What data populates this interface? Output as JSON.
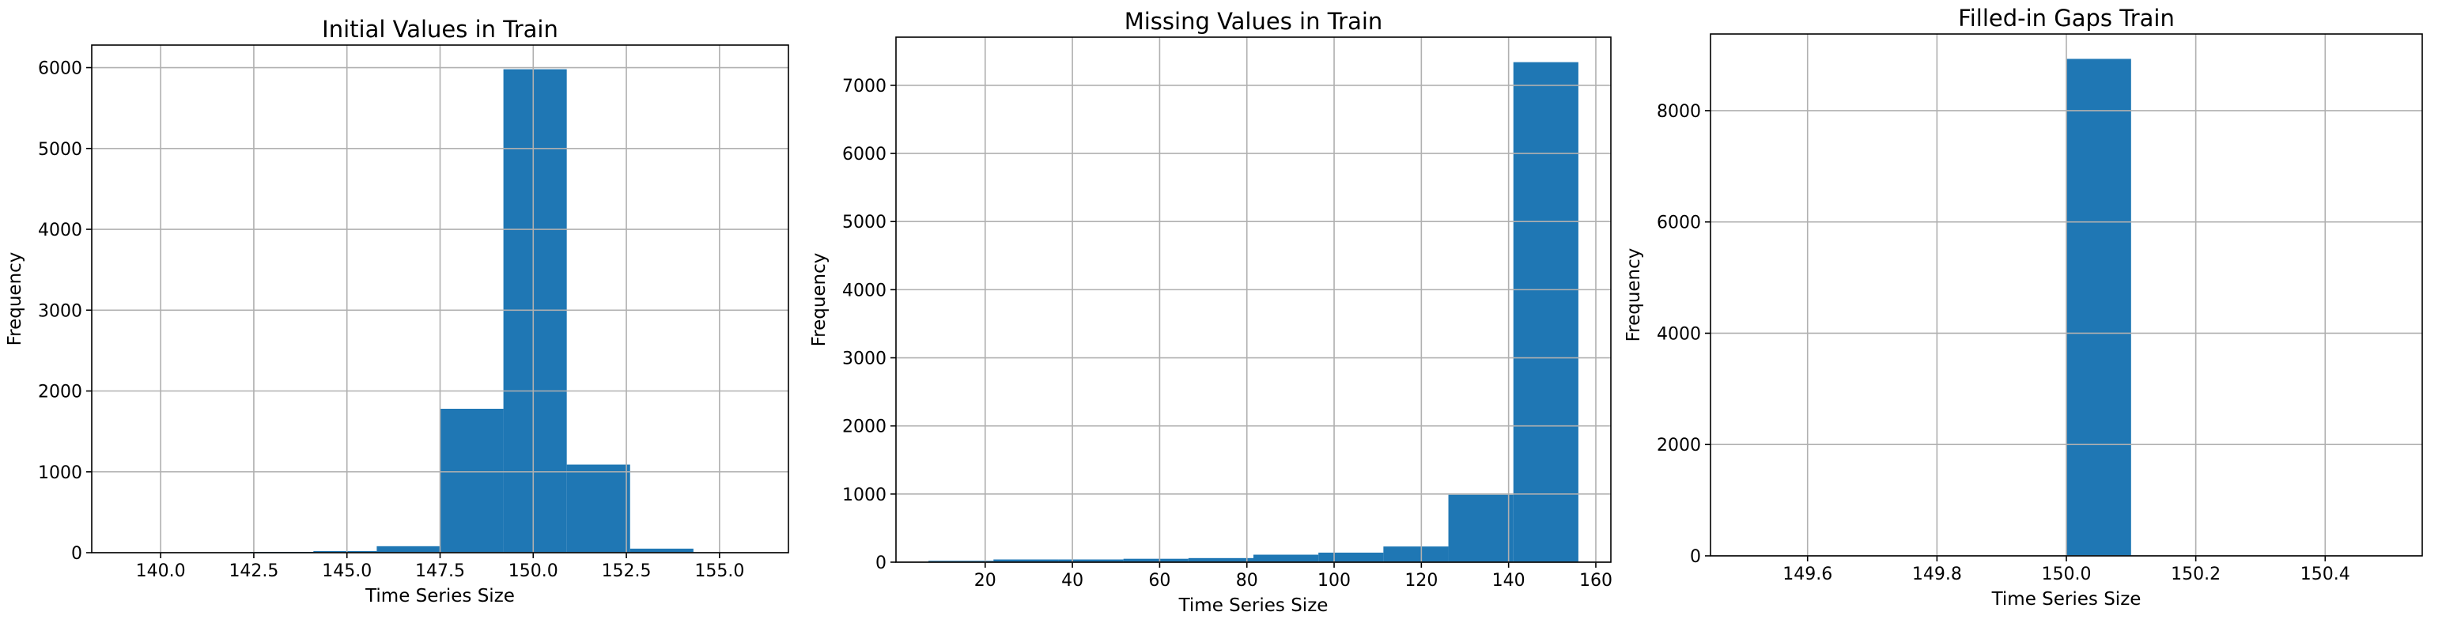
{
  "chart_data": [
    {
      "type": "histogram",
      "title": "Initial Values in Train",
      "x_label": "Time Series Size",
      "y_label": "Frequency",
      "bins": [
        139,
        140.7,
        142.4,
        144.1,
        145.8,
        147.5,
        149.2,
        150.9,
        152.6,
        154.3,
        156
      ],
      "counts": [
        3,
        0,
        10,
        20,
        80,
        1780,
        5980,
        1090,
        50,
        1
      ],
      "color": "#1f77b4",
      "grid": true,
      "xlim": [
        138.15,
        156.85
      ],
      "xticks": [
        {
          "value": 140,
          "label": "140.0"
        },
        {
          "value": 142.5,
          "label": "142.5"
        },
        {
          "value": 145,
          "label": "145.0"
        },
        {
          "value": 147.5,
          "label": "147.5"
        },
        {
          "value": 150,
          "label": "150.0"
        },
        {
          "value": 152.5,
          "label": "152.5"
        },
        {
          "value": 155,
          "label": "155.0"
        }
      ],
      "ylim": [
        0,
        6279
      ],
      "yticks": [
        0,
        1000,
        2000,
        3000,
        4000,
        5000,
        6000
      ]
    },
    {
      "type": "histogram",
      "title": "Missing Values in Train",
      "x_label": "Time Series Size",
      "y_label": "Frequency",
      "bins": [
        7,
        21.9,
        36.8,
        51.7,
        66.6,
        81.5,
        96.4,
        111.3,
        126.2,
        141.1,
        156
      ],
      "counts": [
        20,
        40,
        40,
        50,
        60,
        110,
        140,
        230,
        990,
        7340
      ],
      "color": "#1f77b4",
      "grid": true,
      "xlim": [
        -0.45,
        163.45
      ],
      "xticks": [
        20,
        40,
        60,
        80,
        100,
        120,
        140,
        160
      ],
      "ylim": [
        0,
        7707
      ],
      "yticks": [
        0,
        1000,
        2000,
        3000,
        4000,
        5000,
        6000,
        7000
      ]
    },
    {
      "type": "histogram",
      "title": "Filled-in Gaps Train",
      "x_label": "Time Series Size",
      "y_label": "Frequency",
      "bins": [
        149.5,
        149.6,
        149.7,
        149.8,
        149.9,
        150,
        150.1,
        150.2,
        150.3,
        150.4,
        150.5
      ],
      "counts": [
        0,
        0,
        0,
        0,
        0,
        8930,
        0,
        0,
        0,
        0
      ],
      "color": "#1f77b4",
      "grid": true,
      "xlim": [
        149.45,
        150.55
      ],
      "xticks": [
        149.6,
        149.8,
        {
          "value": 150,
          "label": "150.0"
        },
        150.2,
        150.4
      ],
      "ylim": [
        0,
        9377
      ],
      "yticks": [
        0,
        2000,
        4000,
        6000,
        8000
      ]
    }
  ]
}
